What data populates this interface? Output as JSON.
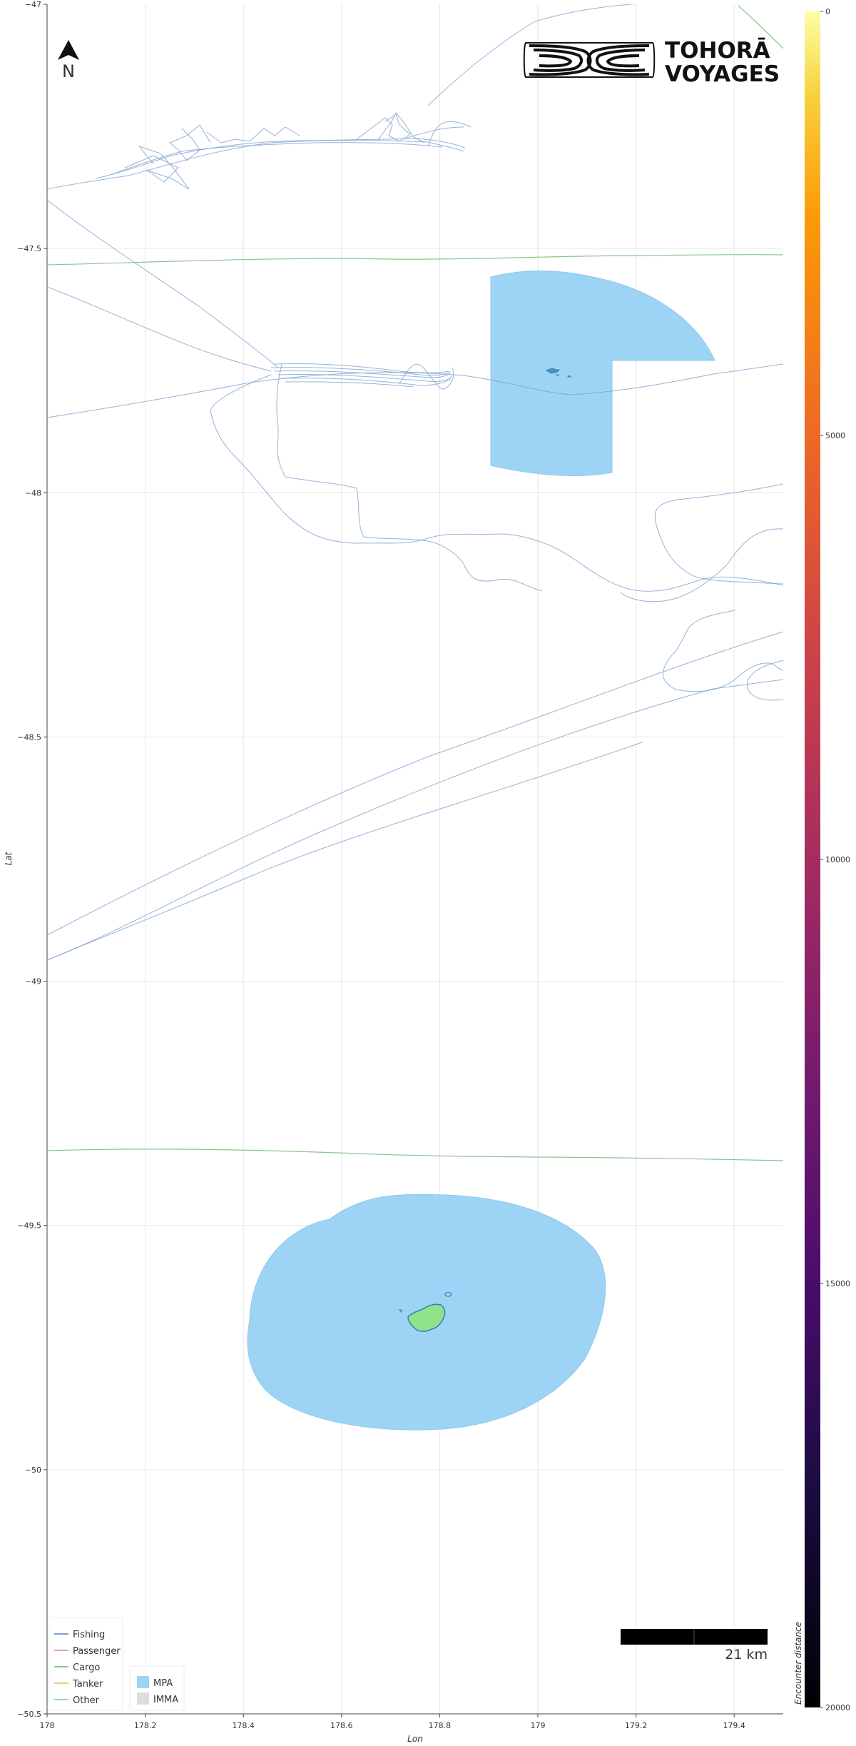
{
  "axes": {
    "x_title": "Lon",
    "y_title": "Lat",
    "x_ticks": [
      "178",
      "178.2",
      "178.4",
      "178.6",
      "178.8",
      "179",
      "179.2",
      "179.4"
    ],
    "y_ticks": [
      "−47",
      "−47.5",
      "−48",
      "−48.5",
      "−49",
      "−49.5",
      "−50",
      "−50.5"
    ],
    "xlim": [
      178,
      179.5
    ],
    "ylim": [
      -50.5,
      -47
    ]
  },
  "colorbar": {
    "title": "Encounter distance",
    "ticks": [
      "0",
      "5000",
      "10000",
      "15000",
      "20000"
    ],
    "range": [
      0,
      20000
    ],
    "colormap": "inferno"
  },
  "north_arrow": {
    "label": "N",
    "icon": "north-arrow-icon"
  },
  "logo": {
    "line1": "TOHORĀ",
    "line2": "VOYAGES"
  },
  "scale_bar": {
    "label": "21 km"
  },
  "legend_vessels": {
    "items": [
      {
        "label": "Fishing",
        "color": "#7b9fcf"
      },
      {
        "label": "Passenger",
        "color": "#d9a3c9"
      },
      {
        "label": "Cargo",
        "color": "#8bc48a"
      },
      {
        "label": "Tanker",
        "color": "#e8cf7a"
      },
      {
        "label": "Other",
        "color": "#9ccbe8"
      }
    ]
  },
  "legend_areas": {
    "items": [
      {
        "label": "MPA",
        "color": "#9dd4f6"
      },
      {
        "label": "IMMA",
        "color": "#dddddd"
      }
    ]
  },
  "colors": {
    "mpa": "#9dd4f6",
    "island": "#90e38a",
    "island_edge": "#3b7fb0",
    "grid": "#e6e6e6",
    "fishing": "#7b9fcf",
    "cargo": "#8bc48a"
  }
}
